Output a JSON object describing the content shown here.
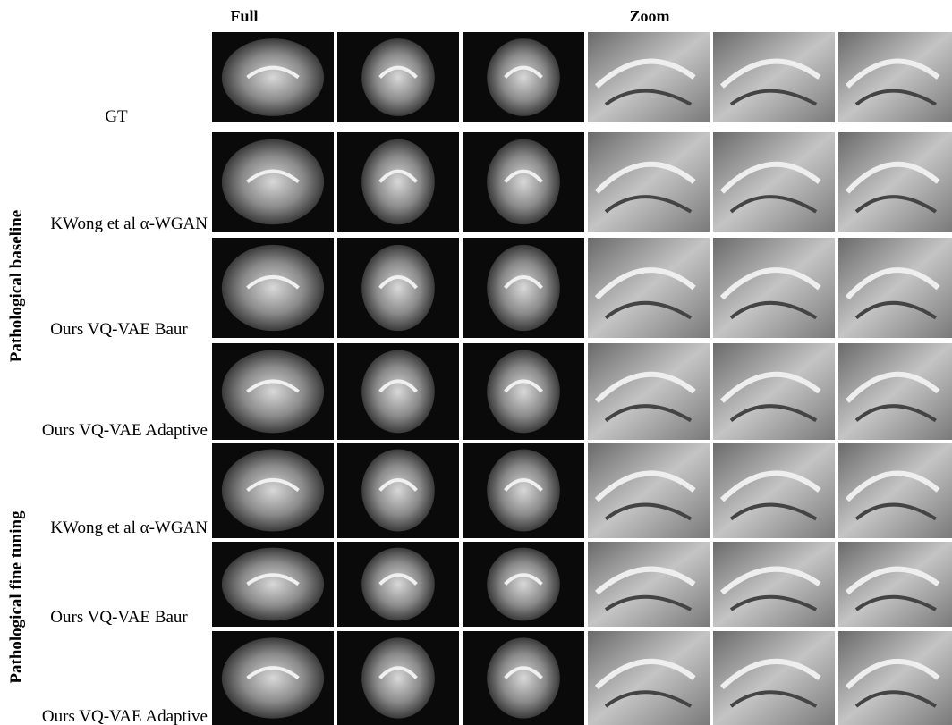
{
  "headers": {
    "full": "Full",
    "zoom": "Zoom"
  },
  "rows": [
    {
      "label": "GT"
    },
    {
      "label": "KWong et al α-WGAN"
    },
    {
      "label": "Ours VQ-VAE Baur"
    },
    {
      "label": "Ours VQ-VAE Adaptive"
    },
    {
      "label": "KWong et al α-WGAN"
    },
    {
      "label": "Ours VQ-VAE Baur"
    },
    {
      "label": "Ours VQ-VAE Adaptive"
    }
  ],
  "groups": [
    {
      "label": "Pathological baseline"
    },
    {
      "label": "Pathological fine tuning"
    }
  ]
}
